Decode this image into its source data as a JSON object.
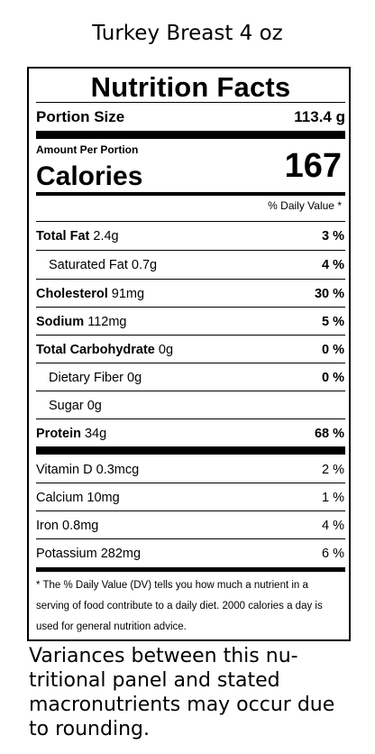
{
  "title": "Turkey Breast 4 oz",
  "label": {
    "heading": "Nutrition Facts",
    "portion_size_label": "Portion Size",
    "portion_size_value": "113.4 g",
    "amount_per_portion": "Amount Per Portion",
    "calories_label": "Calories",
    "calories_value": "167",
    "dv_header": "% Daily Value *",
    "nutrients": [
      {
        "name": "Total Fat",
        "amount": "2.4g",
        "dv": "3 %"
      },
      {
        "name": "Saturated Fat",
        "amount": "0.7g",
        "dv": "4 %"
      },
      {
        "name": "Cholesterol",
        "amount": "91mg",
        "dv": "30 %"
      },
      {
        "name": "Sodium",
        "amount": "112mg",
        "dv": "5 %"
      },
      {
        "name": "Total Carbohydrate",
        "amount": "0g",
        "dv": "0 %"
      },
      {
        "name": "Dietary Fiber",
        "amount": "0g",
        "dv": "0 %"
      },
      {
        "name": "Sugar",
        "amount": "0g",
        "dv": ""
      },
      {
        "name": "Protein",
        "amount": "34g",
        "dv": "68 %"
      }
    ],
    "vitamins": [
      {
        "name": "Vitamin D",
        "amount": "0.3mcg",
        "dv": "2 %"
      },
      {
        "name": "Calcium",
        "amount": "10mg",
        "dv": "1 %"
      },
      {
        "name": "Iron",
        "amount": "0.8mg",
        "dv": "4 %"
      },
      {
        "name": "Potassium",
        "amount": "282mg",
        "dv": "6 %"
      }
    ],
    "footnote": "* The % Daily Value (DV) tells you how much a nutrient in a serving of food contribute to a daily diet. 2000 calories a day is used for general nutrition advice."
  },
  "variance_note": "Variances between this nu-tritional panel and stated macronutrients may occur due to rounding."
}
